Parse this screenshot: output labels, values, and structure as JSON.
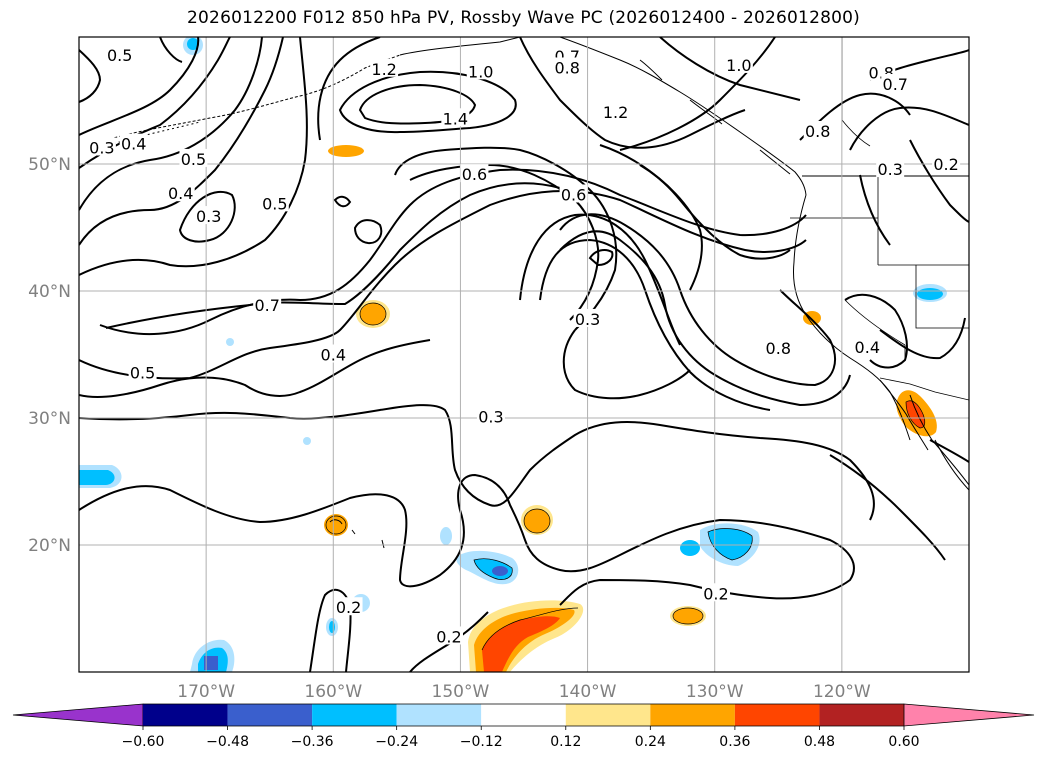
{
  "title": "2026012200 F012 850 hPa PV, Rossby Wave PC (2026012400 - 2026012800)",
  "map": {
    "lon_range": [
      -180,
      -110
    ],
    "lat_range": [
      10,
      60
    ],
    "lon_ticks": [
      {
        "value": -170,
        "label": "170°W"
      },
      {
        "value": -160,
        "label": "160°W"
      },
      {
        "value": -150,
        "label": "150°W"
      },
      {
        "value": -140,
        "label": "140°W"
      },
      {
        "value": -130,
        "label": "130°W"
      },
      {
        "value": -120,
        "label": "120°W"
      }
    ],
    "lat_ticks": [
      {
        "value": 20,
        "label": "20°N"
      },
      {
        "value": 30,
        "label": "30°N"
      },
      {
        "value": 40,
        "label": "40°N"
      },
      {
        "value": 50,
        "label": "50°N"
      }
    ],
    "gridlines": true
  },
  "colorbar": {
    "ticks": [
      "−0.60",
      "−0.48",
      "−0.36",
      "−0.24",
      "−0.12",
      "0.12",
      "0.24",
      "0.36",
      "0.48",
      "0.60"
    ],
    "colors": [
      "#9933cc",
      "#00008b",
      "#3a5fcd",
      "#00bfff",
      "#b0e2ff",
      "#ffffff",
      "#ffe68c",
      "#ffa500",
      "#ff4500",
      "#b22222",
      "#ff82ab"
    ]
  },
  "contour_labels": [
    {
      "text": "0.5",
      "lon": -176.8,
      "lat": 58.6
    },
    {
      "text": "0.3",
      "lon": -178.2,
      "lat": 51.3
    },
    {
      "text": "0.4",
      "lon": -175.7,
      "lat": 51.6
    },
    {
      "text": "0.5",
      "lon": -171.0,
      "lat": 50.4
    },
    {
      "text": "0.4",
      "lon": -172.0,
      "lat": 47.7
    },
    {
      "text": "0.3",
      "lon": -169.8,
      "lat": 45.9
    },
    {
      "text": "0.5",
      "lon": -164.6,
      "lat": 46.9
    },
    {
      "text": "1.2",
      "lon": -156.0,
      "lat": 57.5
    },
    {
      "text": "1.0",
      "lon": -148.4,
      "lat": 57.3
    },
    {
      "text": "0.7",
      "lon": -141.6,
      "lat": 58.5
    },
    {
      "text": "0.8",
      "lon": -141.6,
      "lat": 57.6
    },
    {
      "text": "1.4",
      "lon": -150.4,
      "lat": 53.6
    },
    {
      "text": "1.2",
      "lon": -137.8,
      "lat": 54.1
    },
    {
      "text": "1.0",
      "lon": -128.1,
      "lat": 57.8
    },
    {
      "text": "0.8",
      "lon": -116.9,
      "lat": 57.2
    },
    {
      "text": "0.7",
      "lon": -115.8,
      "lat": 56.3
    },
    {
      "text": "0.8",
      "lon": -121.9,
      "lat": 52.6
    },
    {
      "text": "0.3",
      "lon": -116.2,
      "lat": 49.6
    },
    {
      "text": "0.2",
      "lon": -111.8,
      "lat": 50.0
    },
    {
      "text": "0.6",
      "lon": -148.9,
      "lat": 49.2
    },
    {
      "text": "0.6",
      "lon": -141.1,
      "lat": 47.6
    },
    {
      "text": "0.7",
      "lon": -165.2,
      "lat": 38.9
    },
    {
      "text": "0.4",
      "lon": -160.0,
      "lat": 35.0
    },
    {
      "text": "0.5",
      "lon": -175.0,
      "lat": 33.6
    },
    {
      "text": "0.3",
      "lon": -140.0,
      "lat": 37.8
    },
    {
      "text": "0.8",
      "lon": -125.0,
      "lat": 35.5
    },
    {
      "text": "0.4",
      "lon": -118.0,
      "lat": 35.6
    },
    {
      "text": "0.3",
      "lon": -147.6,
      "lat": 30.1
    },
    {
      "text": "0.2",
      "lon": -129.9,
      "lat": 16.2
    },
    {
      "text": "0.2",
      "lon": -158.8,
      "lat": 15.1
    },
    {
      "text": "0.2",
      "lon": -150.9,
      "lat": 12.8
    }
  ]
}
